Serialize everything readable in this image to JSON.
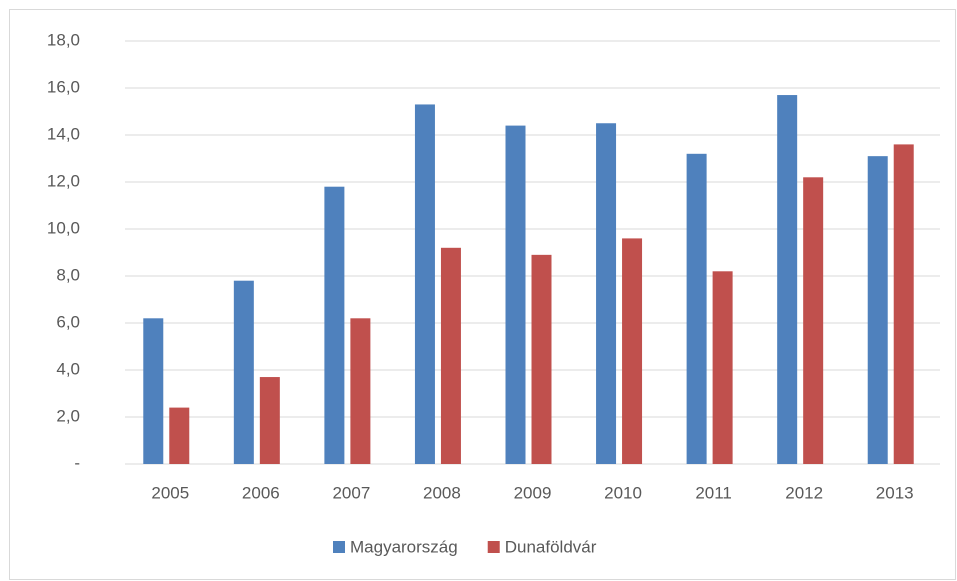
{
  "chart_data": {
    "type": "bar",
    "categories": [
      "2005",
      "2006",
      "2007",
      "2008",
      "2009",
      "2010",
      "2011",
      "2012",
      "2013"
    ],
    "series": [
      {
        "name": "Magyarország",
        "color": "#4f81bd",
        "values": [
          6.2,
          7.8,
          11.8,
          15.3,
          14.4,
          14.5,
          13.2,
          15.7,
          13.1
        ]
      },
      {
        "name": "Dunaföldvár",
        "color": "#c0504d",
        "values": [
          2.4,
          3.7,
          6.2,
          9.2,
          8.9,
          9.6,
          8.2,
          12.2,
          13.6
        ]
      }
    ],
    "ylim": [
      0,
      18
    ],
    "yticks": [
      {
        "value": 0,
        "label": "-"
      },
      {
        "value": 2,
        "label": "2,0"
      },
      {
        "value": 4,
        "label": "4,0"
      },
      {
        "value": 6,
        "label": "6,0"
      },
      {
        "value": 8,
        "label": "8,0"
      },
      {
        "value": 10,
        "label": "10,0"
      },
      {
        "value": 12,
        "label": "12,0"
      },
      {
        "value": 14,
        "label": "14,0"
      },
      {
        "value": 16,
        "label": "16,0"
      },
      {
        "value": 18,
        "label": "18,0"
      }
    ],
    "grid": true,
    "legend": "bottom"
  }
}
